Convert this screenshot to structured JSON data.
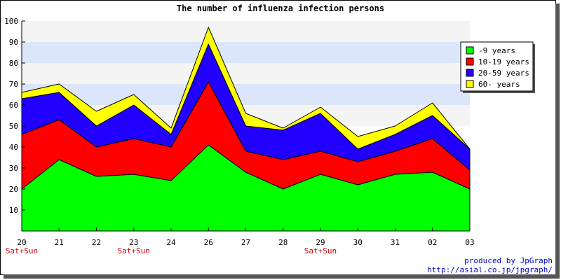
{
  "chart_data": {
    "type": "area",
    "stacked": true,
    "title": "The number of influenza infection persons",
    "xlabel": "",
    "ylabel": "",
    "categories": [
      "20",
      "21",
      "22",
      "23",
      "24",
      "26",
      "27",
      "28",
      "29",
      "30",
      "31",
      "02",
      "03"
    ],
    "category_sublabels": [
      "Sat+Sun",
      "",
      "",
      "Sat+Sun",
      "",
      "",
      "",
      "",
      "Sat+Sun",
      "",
      "",
      "",
      ""
    ],
    "ylim": [
      0,
      100
    ],
    "yticks": [
      10,
      20,
      30,
      40,
      50,
      60,
      70,
      80,
      90,
      100
    ],
    "grid": true,
    "legend_position": "right",
    "series": [
      {
        "name": "-9 years",
        "color": "#00ff00",
        "values": [
          20,
          34,
          26,
          27,
          24,
          41,
          28,
          20,
          27,
          22,
          27,
          28,
          20
        ]
      },
      {
        "name": "10-19 years",
        "color": "#ff0000",
        "values": [
          26,
          19,
          14,
          17,
          16,
          30,
          10,
          14,
          11,
          11,
          11,
          16,
          9
        ]
      },
      {
        "name": "20-59 years",
        "color": "#2200ff",
        "values": [
          17,
          13,
          10,
          16,
          6,
          18,
          12,
          14,
          18,
          6,
          8,
          11,
          10
        ]
      },
      {
        "name": "60- years",
        "color": "#ffff00",
        "values": [
          3,
          4,
          7,
          5,
          3,
          8,
          6,
          1,
          3,
          6,
          4,
          6,
          0
        ]
      }
    ]
  },
  "credit": {
    "line1": "produced by JpGraph",
    "line2": "http://asial.co.jp/jpgraph/"
  }
}
